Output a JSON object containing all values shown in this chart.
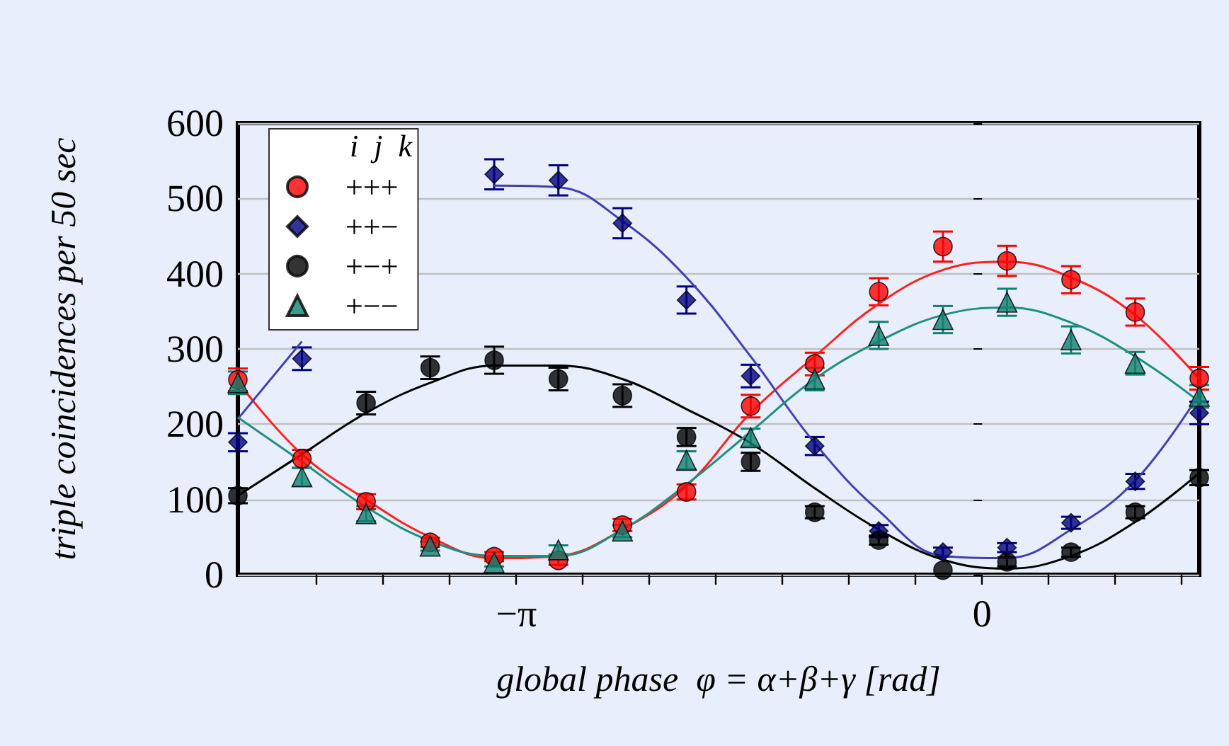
{
  "chart_data": {
    "type": "scatter",
    "xlabel": "global phase  φ = α+β+γ [rad]",
    "ylabel": "triple coincidences per 50 sec",
    "legend_title": "i  j  k",
    "legend": "top left",
    "grid": "y",
    "xlim": [
      -5.02,
      1.465
    ],
    "ylim": [
      0,
      600
    ],
    "yticks": [
      0,
      100,
      200,
      300,
      400,
      500,
      600
    ],
    "xticks": [
      {
        "value": -4.488,
        "label": null
      },
      {
        "value": -4.039,
        "label": null
      },
      {
        "value": -3.59,
        "label": null
      },
      {
        "value": -3.1416,
        "label": "−π"
      },
      {
        "value": -2.693,
        "label": null
      },
      {
        "value": -2.244,
        "label": null
      },
      {
        "value": -1.795,
        "label": null
      },
      {
        "value": -1.346,
        "label": null
      },
      {
        "value": -0.898,
        "label": null
      },
      {
        "value": -0.449,
        "label": null
      },
      {
        "value": 0,
        "label": "0"
      },
      {
        "value": 0.449,
        "label": null
      },
      {
        "value": 0.898,
        "label": null
      },
      {
        "value": 1.346,
        "label": null
      }
    ],
    "x": [
      -5.02,
      -4.588,
      -4.155,
      -3.723,
      -3.291,
      -2.858,
      -2.426,
      -1.994,
      -1.561,
      -1.129,
      -0.697,
      -0.264,
      0.168,
      0.6,
      1.033,
      1.465
    ],
    "series": [
      {
        "name": "+++",
        "marker": "circle",
        "color": "#ff0000",
        "values": [
          259,
          154,
          97,
          43,
          24,
          19,
          66,
          110,
          224,
          280,
          376,
          436,
          417,
          392,
          349,
          261
        ],
        "errors": [
          15,
          12,
          10,
          6,
          6,
          6,
          8,
          10,
          15,
          15,
          18,
          20,
          20,
          18,
          18,
          15
        ]
      },
      {
        "name": "++−",
        "marker": "diamond",
        "color": "#000080",
        "values": [
          176,
          287,
          null,
          null,
          532,
          524,
          467,
          365,
          264,
          171,
          58,
          30,
          36,
          69,
          124,
          215
        ],
        "errors": [
          12,
          15,
          null,
          null,
          20,
          20,
          20,
          18,
          15,
          12,
          8,
          6,
          6,
          8,
          10,
          15
        ]
      },
      {
        "name": "+−+",
        "marker": "circle",
        "color": "#000000",
        "values": [
          105,
          null,
          228,
          275,
          285,
          260,
          238,
          183,
          150,
          83,
          46,
          6,
          17,
          30,
          83,
          129
        ],
        "errors": [
          10,
          null,
          15,
          15,
          18,
          15,
          15,
          12,
          12,
          8,
          6,
          null,
          6,
          6,
          8,
          10
        ]
      },
      {
        "name": "+−−",
        "marker": "triangle",
        "color": "#108070",
        "values": [
          255,
          130,
          81,
          38,
          16,
          33,
          58,
          152,
          182,
          260,
          318,
          339,
          362,
          312,
          281,
          237
        ],
        "errors": [
          15,
          12,
          10,
          6,
          5,
          6,
          8,
          12,
          12,
          15,
          18,
          18,
          18,
          18,
          15,
          15
        ]
      },
      {
        "type": "line",
        "marker": "none",
        "color": "#ff2020",
        "values": [
          256,
          160,
          100,
          50,
          22,
          25,
          60,
          118,
          215,
          290,
          360,
          405,
          416,
          395,
          345,
          260
        ]
      },
      {
        "type": "line",
        "marker": "none",
        "color": "#4040b0",
        "values": [
          207,
          310,
          null,
          null,
          517,
          515,
          470,
          395,
          290,
          175,
          85,
          25,
          22,
          60,
          125,
          240
        ]
      },
      {
        "type": "line",
        "marker": "none",
        "color": "#000000",
        "values": [
          105,
          160,
          215,
          255,
          278,
          278,
          260,
          220,
          175,
          115,
          60,
          20,
          8,
          25,
          70,
          135
        ]
      },
      {
        "type": "line",
        "marker": "none",
        "color": "#209080",
        "values": [
          209,
          150,
          90,
          45,
          25,
          25,
          60,
          120,
          190,
          260,
          310,
          345,
          355,
          335,
          290,
          230
        ]
      }
    ]
  }
}
